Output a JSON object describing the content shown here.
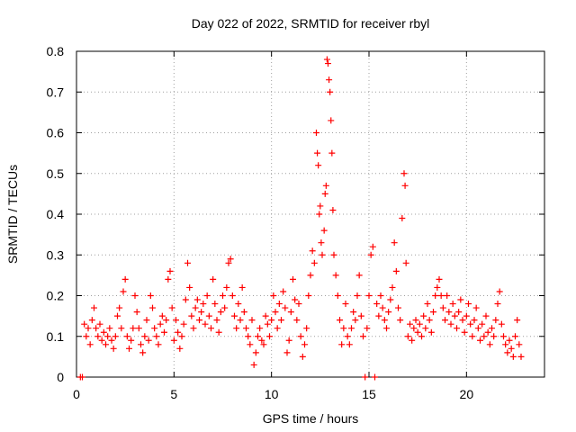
{
  "chart_data": {
    "type": "scatter",
    "title": "Day 022 of 2022, SRMTID for receiver rbyl",
    "xlabel": "GPS time / hours",
    "ylabel": "SRMTID / TECUs",
    "xlim": [
      0,
      24
    ],
    "ylim": [
      0,
      0.8
    ],
    "x_ticks": [
      "0",
      "5",
      "10",
      "15",
      "20"
    ],
    "y_ticks": [
      "0",
      "0.1",
      "0.2",
      "0.3",
      "0.4",
      "0.5",
      "0.6",
      "0.7",
      "0.8"
    ],
    "x_tick_values": [
      0,
      5,
      10,
      15,
      20
    ],
    "y_tick_values": [
      0,
      0.1,
      0.2,
      0.3,
      0.4,
      0.5,
      0.6,
      0.7,
      0.8
    ],
    "grid": true,
    "marker": "+",
    "series_color": "#ff0000",
    "series": [
      {
        "name": "SRMTID",
        "points": [
          [
            0.2,
            0.0
          ],
          [
            0.3,
            0.0
          ],
          [
            0.4,
            0.13
          ],
          [
            0.5,
            0.1
          ],
          [
            0.6,
            0.12
          ],
          [
            0.7,
            0.08
          ],
          [
            0.8,
            0.14
          ],
          [
            0.9,
            0.17
          ],
          [
            1.0,
            0.12
          ],
          [
            1.1,
            0.1
          ],
          [
            1.2,
            0.13
          ],
          [
            1.3,
            0.09
          ],
          [
            1.4,
            0.11
          ],
          [
            1.5,
            0.08
          ],
          [
            1.6,
            0.1
          ],
          [
            1.7,
            0.12
          ],
          [
            1.8,
            0.09
          ],
          [
            1.9,
            0.07
          ],
          [
            2.0,
            0.1
          ],
          [
            2.1,
            0.15
          ],
          [
            2.2,
            0.17
          ],
          [
            2.3,
            0.12
          ],
          [
            2.4,
            0.21
          ],
          [
            2.5,
            0.24
          ],
          [
            2.6,
            0.1
          ],
          [
            2.7,
            0.07
          ],
          [
            2.8,
            0.09
          ],
          [
            2.9,
            0.12
          ],
          [
            3.0,
            0.2
          ],
          [
            3.1,
            0.16
          ],
          [
            3.2,
            0.12
          ],
          [
            3.3,
            0.08
          ],
          [
            3.4,
            0.06
          ],
          [
            3.5,
            0.1
          ],
          [
            3.6,
            0.14
          ],
          [
            3.7,
            0.09
          ],
          [
            3.8,
            0.2
          ],
          [
            3.9,
            0.17
          ],
          [
            4.0,
            0.12
          ],
          [
            4.1,
            0.1
          ],
          [
            4.2,
            0.08
          ],
          [
            4.3,
            0.13
          ],
          [
            4.4,
            0.15
          ],
          [
            4.5,
            0.11
          ],
          [
            4.6,
            0.14
          ],
          [
            4.7,
            0.24
          ],
          [
            4.8,
            0.26
          ],
          [
            4.9,
            0.17
          ],
          [
            5.0,
            0.09
          ],
          [
            5.1,
            0.14
          ],
          [
            5.2,
            0.11
          ],
          [
            5.3,
            0.07
          ],
          [
            5.4,
            0.1
          ],
          [
            5.5,
            0.13
          ],
          [
            5.6,
            0.19
          ],
          [
            5.7,
            0.28
          ],
          [
            5.8,
            0.22
          ],
          [
            5.9,
            0.15
          ],
          [
            6.0,
            0.12
          ],
          [
            6.1,
            0.17
          ],
          [
            6.2,
            0.19
          ],
          [
            6.3,
            0.14
          ],
          [
            6.4,
            0.16
          ],
          [
            6.5,
            0.18
          ],
          [
            6.6,
            0.13
          ],
          [
            6.7,
            0.2
          ],
          [
            6.8,
            0.15
          ],
          [
            6.9,
            0.12
          ],
          [
            7.0,
            0.24
          ],
          [
            7.1,
            0.18
          ],
          [
            7.2,
            0.14
          ],
          [
            7.3,
            0.11
          ],
          [
            7.4,
            0.16
          ],
          [
            7.5,
            0.2
          ],
          [
            7.6,
            0.17
          ],
          [
            7.7,
            0.22
          ],
          [
            7.8,
            0.28
          ],
          [
            7.9,
            0.29
          ],
          [
            8.0,
            0.2
          ],
          [
            8.1,
            0.15
          ],
          [
            8.2,
            0.12
          ],
          [
            8.3,
            0.18
          ],
          [
            8.4,
            0.14
          ],
          [
            8.5,
            0.22
          ],
          [
            8.6,
            0.16
          ],
          [
            8.7,
            0.12
          ],
          [
            8.8,
            0.1
          ],
          [
            8.9,
            0.08
          ],
          [
            9.0,
            0.14
          ],
          [
            9.1,
            0.03
          ],
          [
            9.2,
            0.06
          ],
          [
            9.3,
            0.1
          ],
          [
            9.4,
            0.12
          ],
          [
            9.5,
            0.09
          ],
          [
            9.6,
            0.08
          ],
          [
            9.7,
            0.15
          ],
          [
            9.8,
            0.13
          ],
          [
            9.9,
            0.1
          ],
          [
            10.0,
            0.14
          ],
          [
            10.1,
            0.2
          ],
          [
            10.2,
            0.16
          ],
          [
            10.3,
            0.12
          ],
          [
            10.4,
            0.18
          ],
          [
            10.5,
            0.14
          ],
          [
            10.6,
            0.21
          ],
          [
            10.7,
            0.17
          ],
          [
            10.8,
            0.06
          ],
          [
            10.9,
            0.09
          ],
          [
            11.0,
            0.16
          ],
          [
            11.1,
            0.24
          ],
          [
            11.2,
            0.19
          ],
          [
            11.3,
            0.14
          ],
          [
            11.4,
            0.18
          ],
          [
            11.5,
            0.1
          ],
          [
            11.6,
            0.05
          ],
          [
            11.7,
            0.08
          ],
          [
            11.8,
            0.12
          ],
          [
            11.9,
            0.2
          ],
          [
            12.0,
            0.25
          ],
          [
            12.1,
            0.31
          ],
          [
            12.2,
            0.28
          ],
          [
            12.3,
            0.6
          ],
          [
            12.35,
            0.55
          ],
          [
            12.4,
            0.52
          ],
          [
            12.45,
            0.4
          ],
          [
            12.5,
            0.42
          ],
          [
            12.55,
            0.33
          ],
          [
            12.6,
            0.3
          ],
          [
            12.7,
            0.36
          ],
          [
            12.75,
            0.45
          ],
          [
            12.8,
            0.47
          ],
          [
            12.85,
            0.78
          ],
          [
            12.9,
            0.77
          ],
          [
            12.95,
            0.73
          ],
          [
            13.0,
            0.7
          ],
          [
            13.05,
            0.63
          ],
          [
            13.1,
            0.55
          ],
          [
            13.15,
            0.41
          ],
          [
            13.2,
            0.3
          ],
          [
            13.3,
            0.25
          ],
          [
            13.4,
            0.2
          ],
          [
            13.5,
            0.14
          ],
          [
            13.6,
            0.08
          ],
          [
            13.7,
            0.12
          ],
          [
            13.8,
            0.18
          ],
          [
            13.9,
            0.1
          ],
          [
            14.0,
            0.08
          ],
          [
            14.1,
            0.12
          ],
          [
            14.2,
            0.16
          ],
          [
            14.3,
            0.14
          ],
          [
            14.4,
            0.2
          ],
          [
            14.5,
            0.25
          ],
          [
            14.6,
            0.15
          ],
          [
            14.7,
            0.1
          ],
          [
            14.8,
            0.0
          ],
          [
            14.9,
            0.12
          ],
          [
            15.0,
            0.2
          ],
          [
            15.1,
            0.3
          ],
          [
            15.2,
            0.32
          ],
          [
            15.3,
            0.0
          ],
          [
            15.4,
            0.18
          ],
          [
            15.5,
            0.15
          ],
          [
            15.6,
            0.2
          ],
          [
            15.7,
            0.17
          ],
          [
            15.8,
            0.14
          ],
          [
            15.9,
            0.12
          ],
          [
            16.0,
            0.16
          ],
          [
            16.1,
            0.19
          ],
          [
            16.2,
            0.22
          ],
          [
            16.3,
            0.33
          ],
          [
            16.4,
            0.26
          ],
          [
            16.5,
            0.17
          ],
          [
            16.6,
            0.14
          ],
          [
            16.7,
            0.39
          ],
          [
            16.8,
            0.5
          ],
          [
            16.85,
            0.47
          ],
          [
            16.9,
            0.28
          ],
          [
            17.0,
            0.1
          ],
          [
            17.1,
            0.13
          ],
          [
            17.2,
            0.09
          ],
          [
            17.3,
            0.12
          ],
          [
            17.4,
            0.14
          ],
          [
            17.5,
            0.11
          ],
          [
            17.6,
            0.13
          ],
          [
            17.7,
            0.1
          ],
          [
            17.8,
            0.15
          ],
          [
            17.9,
            0.12
          ],
          [
            18.0,
            0.18
          ],
          [
            18.1,
            0.14
          ],
          [
            18.2,
            0.11
          ],
          [
            18.3,
            0.16
          ],
          [
            18.4,
            0.2
          ],
          [
            18.5,
            0.22
          ],
          [
            18.6,
            0.24
          ],
          [
            18.7,
            0.2
          ],
          [
            18.8,
            0.17
          ],
          [
            18.9,
            0.14
          ],
          [
            19.0,
            0.2
          ],
          [
            19.1,
            0.16
          ],
          [
            19.2,
            0.13
          ],
          [
            19.3,
            0.18
          ],
          [
            19.4,
            0.15
          ],
          [
            19.5,
            0.12
          ],
          [
            19.6,
            0.16
          ],
          [
            19.7,
            0.19
          ],
          [
            19.8,
            0.14
          ],
          [
            19.9,
            0.11
          ],
          [
            20.0,
            0.15
          ],
          [
            20.1,
            0.18
          ],
          [
            20.2,
            0.13
          ],
          [
            20.3,
            0.1
          ],
          [
            20.4,
            0.14
          ],
          [
            20.5,
            0.17
          ],
          [
            20.6,
            0.12
          ],
          [
            20.7,
            0.09
          ],
          [
            20.8,
            0.13
          ],
          [
            20.9,
            0.1
          ],
          [
            21.0,
            0.15
          ],
          [
            21.1,
            0.11
          ],
          [
            21.2,
            0.08
          ],
          [
            21.3,
            0.12
          ],
          [
            21.4,
            0.1
          ],
          [
            21.5,
            0.14
          ],
          [
            21.6,
            0.18
          ],
          [
            21.7,
            0.21
          ],
          [
            21.8,
            0.13
          ],
          [
            21.9,
            0.1
          ],
          [
            22.0,
            0.08
          ],
          [
            22.1,
            0.06
          ],
          [
            22.2,
            0.09
          ],
          [
            22.3,
            0.07
          ],
          [
            22.4,
            0.05
          ],
          [
            22.5,
            0.1
          ],
          [
            22.6,
            0.14
          ],
          [
            22.7,
            0.08
          ],
          [
            22.8,
            0.05
          ]
        ]
      }
    ]
  }
}
